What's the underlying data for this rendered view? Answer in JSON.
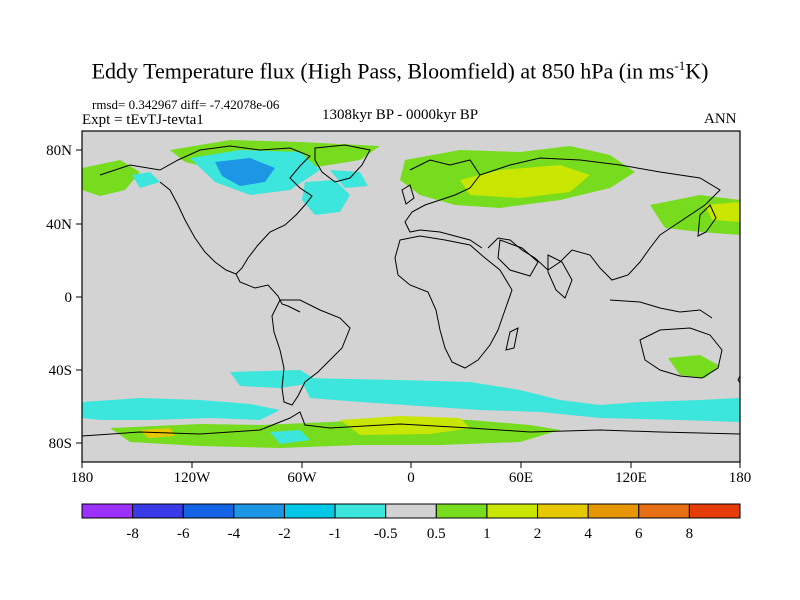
{
  "title": {
    "main": "Eddy Temperature flux (High Pass, Bloomfield) at 850 hPa (in ms",
    "sup": "-1",
    "end": "K)"
  },
  "stats": {
    "rmsd_line": "rmsd= 0.342967 diff= -7.42078e-06",
    "experiment": "Expt = tEvTJ-tevta1",
    "period": "1308kyr BP - 0000kyr BP",
    "season": "ANN"
  },
  "axes": {
    "x_ticks": [
      "180",
      "120W",
      "60W",
      "0",
      "60E",
      "120E",
      "180"
    ],
    "y_ticks": [
      "80N",
      "40N",
      "0",
      "40S",
      "80S"
    ]
  },
  "colorbar": {
    "colors": [
      "#9b30ff",
      "#3a3ae6",
      "#1464e6",
      "#1e96e6",
      "#00c8e6",
      "#3ce6dc",
      "#d3d3d3",
      "#78dc1e",
      "#c8e600",
      "#e6c800",
      "#e69600",
      "#e66e14",
      "#e63c0a"
    ],
    "labels": [
      "-8",
      "-6",
      "-4",
      "-2",
      "-1",
      "-0.5",
      "0.5",
      "1",
      "2",
      "4",
      "6",
      "8"
    ]
  },
  "colors": {
    "zero_fill": "#d3d3d3",
    "coast": "#000000"
  }
}
